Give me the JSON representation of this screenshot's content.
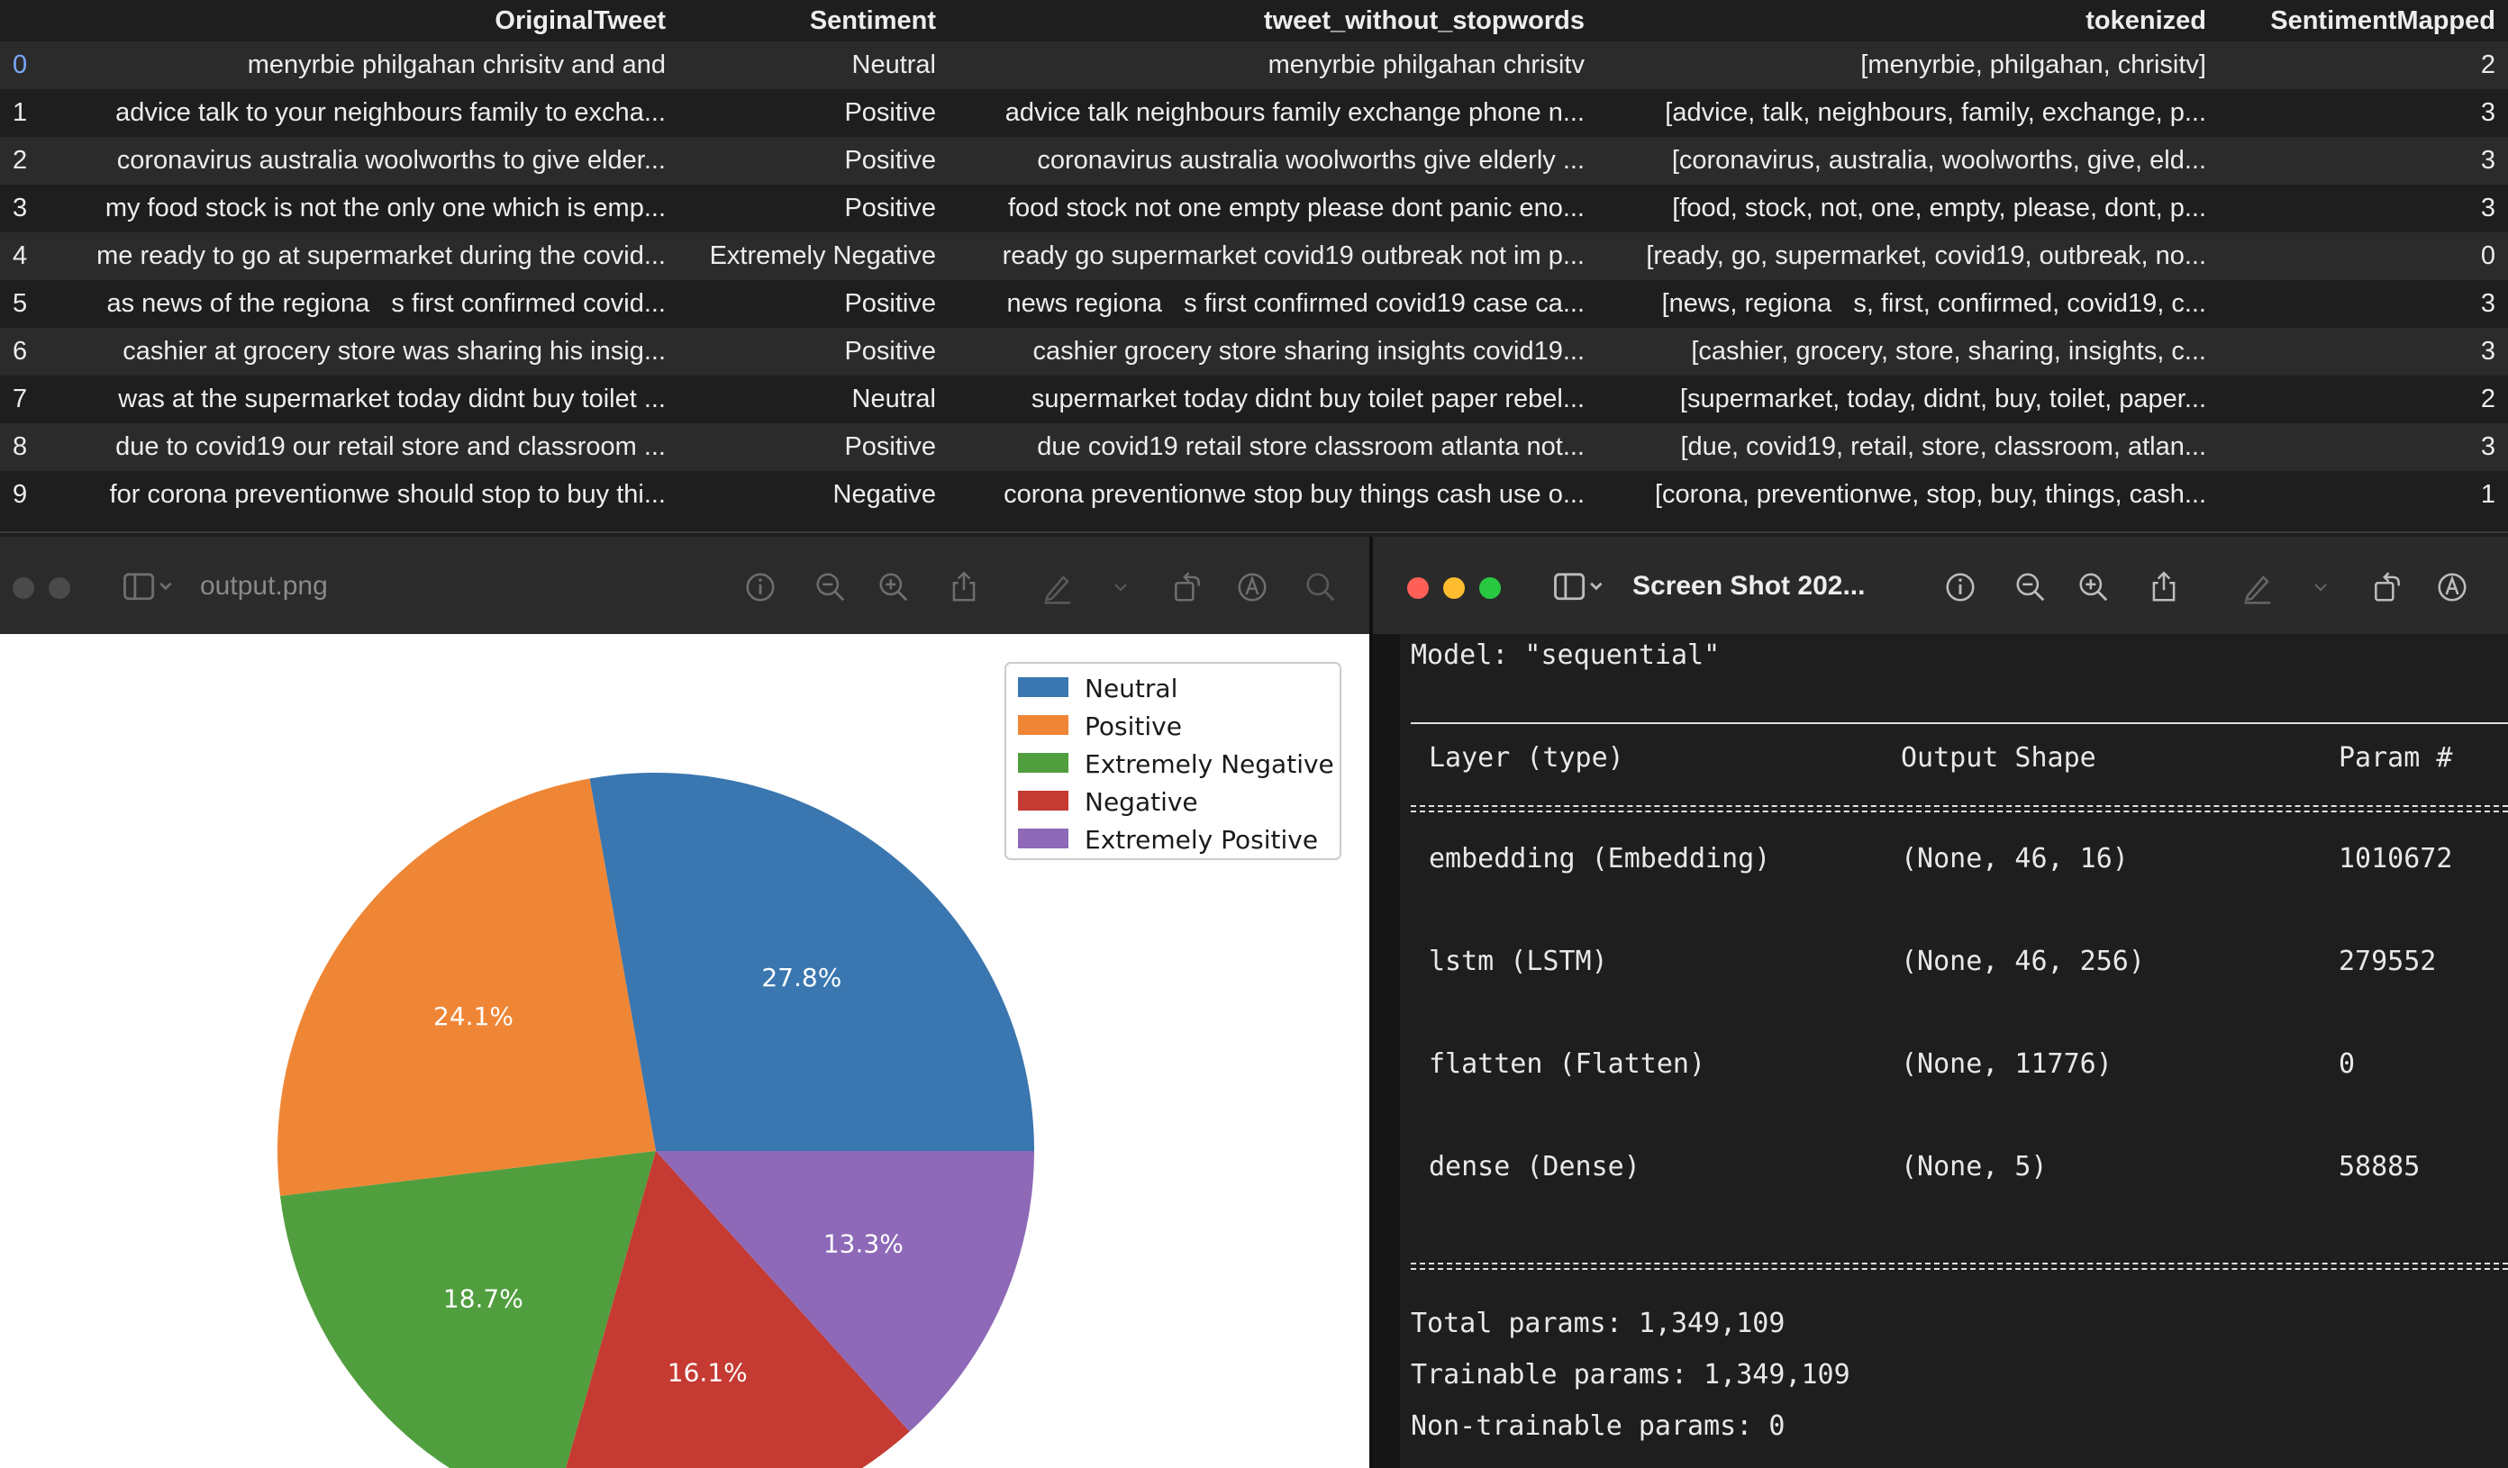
{
  "dataframe": {
    "columns": [
      "",
      "OriginalTweet",
      "Sentiment",
      "tweet_without_stopwords",
      "tokenized",
      "SentimentMapped"
    ],
    "rows": [
      [
        "0",
        "menyrbie philgahan chrisitv and and",
        "Neutral",
        "menyrbie philgahan chrisitv",
        "[menyrbie, philgahan, chrisitv]",
        "2"
      ],
      [
        "1",
        "advice talk to your neighbours family to excha...",
        "Positive",
        "advice talk neighbours family exchange phone n...",
        "[advice, talk, neighbours, family, exchange, p...",
        "3"
      ],
      [
        "2",
        "coronavirus australia woolworths to give elder...",
        "Positive",
        "coronavirus australia woolworths give elderly ...",
        "[coronavirus, australia, woolworths, give, eld...",
        "3"
      ],
      [
        "3",
        "my food stock is not the only one which is emp...",
        "Positive",
        "food stock not one empty please dont panic eno...",
        "[food, stock, not, one, empty, please, dont, p...",
        "3"
      ],
      [
        "4",
        "me ready to go at supermarket during the covid...",
        "Extremely Negative",
        "ready go supermarket covid19 outbreak not im p...",
        "[ready, go, supermarket, covid19, outbreak, no...",
        "0"
      ],
      [
        "5",
        "as news of the regiona   s first confirmed covid...",
        "Positive",
        "news regiona   s first confirmed covid19 case ca...",
        "[news, regiona   s, first, confirmed, covid19, c...",
        "3"
      ],
      [
        "6",
        "cashier at grocery store was sharing his insig...",
        "Positive",
        "cashier grocery store sharing insights covid19...",
        "[cashier, grocery, store, sharing, insights, c...",
        "3"
      ],
      [
        "7",
        "was at the supermarket today didnt buy toilet ...",
        "Neutral",
        "supermarket today didnt buy toilet paper rebel...",
        "[supermarket, today, didnt, buy, toilet, paper...",
        "2"
      ],
      [
        "8",
        "due to covid19 our retail store and classroom ...",
        "Positive",
        "due covid19 retail store classroom atlanta not...",
        "[due, covid19, retail, store, classroom, atlan...",
        "3"
      ],
      [
        "9",
        "for corona preventionwe should stop to buy thi...",
        "Negative",
        "corona preventionwe stop buy things cash use o...",
        "[corona, preventionwe, stop, buy, things, cash...",
        "1"
      ]
    ]
  },
  "left_window": {
    "title": "output.png",
    "toolbar_icons": [
      "sidebar-icon",
      "info-icon",
      "zoom-out-icon",
      "zoom-in-icon",
      "share-icon",
      "markup-icon",
      "rotate-icon",
      "annotate-icon",
      "search-icon"
    ]
  },
  "right_window": {
    "title": "Screen Shot 202...",
    "toolbar_icons": [
      "sidebar-icon",
      "info-icon",
      "zoom-out-icon",
      "zoom-in-icon",
      "share-icon",
      "markup-icon",
      "rotate-icon",
      "annotate-icon"
    ]
  },
  "chart_data": {
    "type": "pie",
    "categories": [
      "Neutral",
      "Positive",
      "Extremely Negative",
      "Negative",
      "Extremely Positive"
    ],
    "values": [
      27.8,
      24.1,
      18.7,
      16.1,
      13.3
    ],
    "labels": [
      "27.8%",
      "24.1%",
      "18.7%",
      "16.1%",
      "13.3%"
    ],
    "colors": [
      "#3a76af",
      "#ef8636",
      "#519e3e",
      "#c53a32",
      "#8d69b8"
    ],
    "start_angle": 0,
    "direction": "counterclockwise",
    "legend_position": "top-right"
  },
  "model_summary": {
    "model_line": "Model: \"sequential\"",
    "headers": [
      "Layer (type)",
      "Output Shape",
      "Param #"
    ],
    "layers": [
      {
        "name": "embedding (Embedding)",
        "shape": "(None, 46, 16)",
        "params": "1010672"
      },
      {
        "name": "lstm (LSTM)",
        "shape": "(None, 46, 256)",
        "params": "279552"
      },
      {
        "name": "flatten (Flatten)",
        "shape": "(None, 11776)",
        "params": "0"
      },
      {
        "name": "dense (Dense)",
        "shape": "(None, 5)",
        "params": "58885"
      }
    ],
    "total": "Total params: 1,349,109",
    "trainable": "Trainable params: 1,349,109",
    "non_trainable": "Non-trainable params: 0"
  },
  "colors": {
    "traffic_red": "#ff5f57",
    "traffic_yellow": "#febc2e",
    "traffic_green": "#28c840",
    "inactive_light": "#4a4a4a"
  }
}
